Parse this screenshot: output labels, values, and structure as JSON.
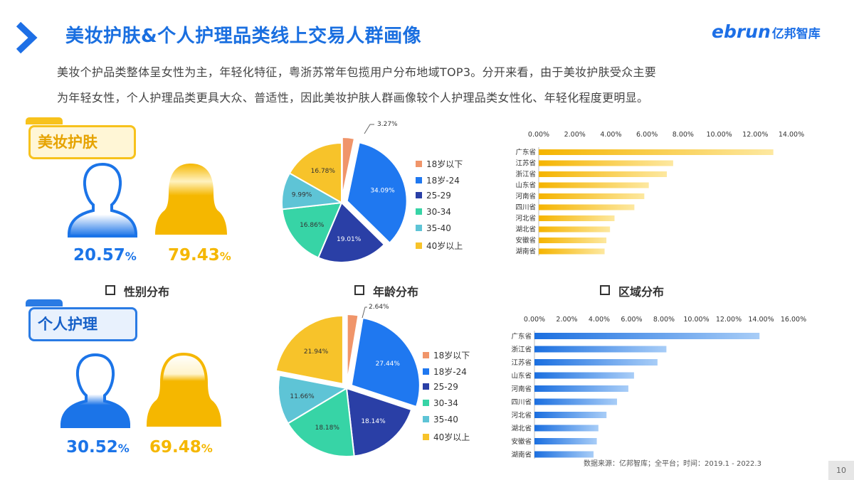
{
  "header": {
    "title": "美妆护肤&个人护理品类线上交易人群画像",
    "logo_en": "ebrun",
    "logo_cn": "亿邦智库",
    "intro_line1": "美妆个护品类整体呈女性为主，年轻化特征，粤浙苏常年包揽用户分布地域TOP3。分开来看，由于美妆护肤受众主要",
    "intro_line2": "为年轻女性，个人护理品类更具大众、普适性，因此美妆护肤人群画像较个人护理品类女性化、年轻化程度更明显。"
  },
  "segments": {
    "beauty": {
      "label": "美妆护肤",
      "male_pct": "20.57",
      "female_pct": "79.43",
      "pct_sign": "%"
    },
    "personal": {
      "label": "个人护理",
      "male_pct": "30.52",
      "female_pct": "69.48",
      "pct_sign": "%"
    }
  },
  "sections": {
    "gender": "性别分布",
    "age": "年龄分布",
    "region": "区域分布"
  },
  "colors": {
    "blue": "#1b74e8",
    "gold": "#f5b700",
    "age": [
      "#f0956a",
      "#1f78f0",
      "#2a3fa6",
      "#37d4a6",
      "#5ec4d6",
      "#f7c32a"
    ]
  },
  "icons": {
    "male": "male-person-icon",
    "female": "female-person-icon",
    "chevron": "chevron-right-icon"
  },
  "chart_data": [
    {
      "type": "pie",
      "segment": "美妆护肤",
      "categories": [
        "18岁以下",
        "18岁-24",
        "25-29",
        "30-34",
        "35-40",
        "40岁以上"
      ],
      "values": [
        3.27,
        34.09,
        19.01,
        16.86,
        9.99,
        16.78
      ],
      "labels": [
        "3.27%",
        "34.09%",
        "19.01%",
        "16.86%",
        "9.99%",
        "16.78%"
      ]
    },
    {
      "type": "pie",
      "segment": "个人护理",
      "categories": [
        "18岁以下",
        "18岁-24",
        "25-29",
        "30-34",
        "35-40",
        "40岁以上"
      ],
      "values": [
        2.64,
        27.44,
        18.14,
        18.18,
        11.66,
        21.94
      ],
      "labels": [
        "2.64%",
        "27.44%",
        "18.14%",
        "18.18%",
        "11.66%",
        "21.94%"
      ]
    },
    {
      "type": "bar",
      "orientation": "horizontal",
      "segment": "美妆护肤",
      "categories": [
        "广东省",
        "江苏省",
        "浙江省",
        "山东省",
        "河南省",
        "四川省",
        "河北省",
        "湖北省",
        "安徽省",
        "湖南省"
      ],
      "values": [
        13.0,
        7.45,
        7.1,
        6.1,
        5.85,
        5.3,
        4.2,
        3.95,
        3.75,
        3.65
      ],
      "xlim": [
        0,
        14
      ],
      "ticks": [
        "0.00%",
        "2.00%",
        "4.00%",
        "6.00%",
        "8.00%",
        "10.00%",
        "12.00%",
        "14.00%"
      ],
      "color": "#f7c21c"
    },
    {
      "type": "bar",
      "orientation": "horizontal",
      "segment": "个人护理",
      "categories": [
        "广东省",
        "浙江省",
        "江苏省",
        "山东省",
        "河南省",
        "四川省",
        "河北省",
        "湖北省",
        "安徽省",
        "湖南省"
      ],
      "values": [
        13.9,
        8.15,
        7.6,
        6.15,
        5.8,
        5.1,
        4.45,
        3.95,
        3.85,
        3.65
      ],
      "xlim": [
        0,
        16
      ],
      "ticks": [
        "0.00%",
        "2.00%",
        "4.00%",
        "6.00%",
        "8.00%",
        "10.00%",
        "12.00%",
        "14.00%",
        "16.00%"
      ],
      "color": "#2a7be4"
    }
  ],
  "footer": {
    "source": "数据来源：亿邦智库；全平台；时间：2019.1 - 2022.3",
    "page": "10"
  }
}
